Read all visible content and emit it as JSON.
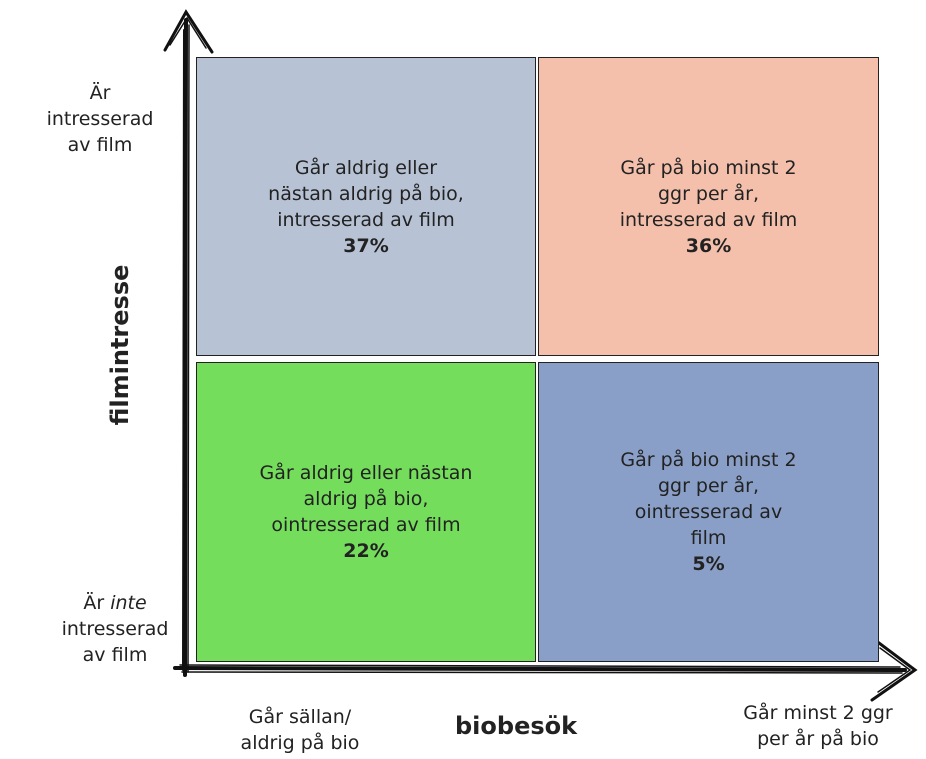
{
  "y_axis": {
    "title": "filmintresse",
    "high_label": [
      "Är",
      "intresserad",
      "av film"
    ],
    "low_label": [
      "Är",
      "inte",
      "intresserad",
      "av film"
    ]
  },
  "x_axis": {
    "title": "biobesök",
    "low_label": [
      "Går sällan/",
      "aldrig på bio"
    ],
    "high_label": [
      "Går minst 2 ggr",
      "per år på bio"
    ]
  },
  "quadrants": [
    {
      "lines": [
        "Går aldrig eller",
        "nästan aldrig på bio,",
        "intresserad av film"
      ],
      "share": "37%"
    },
    {
      "lines": [
        "Går på bio minst 2",
        "ggr per år,",
        "intresserad av film"
      ],
      "share": "36%"
    },
    {
      "lines": [
        "Går aldrig eller nästan",
        "aldrig på bio,",
        "ointresserad av film"
      ],
      "share": "22%"
    },
    {
      "lines": [
        "Går på bio minst 2",
        "ggr per år,",
        "ointresserad av",
        "film"
      ],
      "share": "5%"
    }
  ]
}
